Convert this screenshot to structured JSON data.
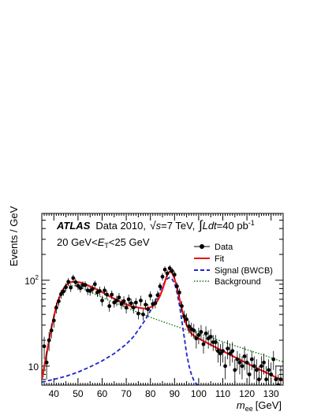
{
  "chart_data": {
    "type": "scatter",
    "ylabel": "Events / GeV",
    "xlabel": "m",
    "xlabel_sub": "ee",
    "xlabel_unit": "[GeV]",
    "xlim": [
      35,
      135
    ],
    "ylim": [
      6,
      600
    ],
    "y_log": true,
    "grid": false,
    "legend_position": "top-right",
    "x_ticks": [
      "40",
      "50",
      "60",
      "70",
      "80",
      "90",
      "100",
      "110",
      "120",
      "130"
    ],
    "y_ticks": [
      "10",
      "10"
    ],
    "y_tick_exponents": [
      "",
      "2"
    ],
    "annotations": {
      "atlas": "ATLAS",
      "data_label": "Data 2010,",
      "sqrt_sym": "√",
      "s_label": "s",
      "energy": "=7 TeV,",
      "integral": "∫",
      "ldt": "Ldt",
      "lumi": "=40 pb",
      "lumi_exp": "-1",
      "range_prefix": "20 GeV<",
      "range_var": "E",
      "range_sub": "T",
      "range_suffix": "<25 GeV"
    },
    "legend": [
      "Data",
      "Fit",
      "Signal (BWCB)",
      "Background"
    ],
    "colors": {
      "data": "#000000",
      "fit": "#ee1111",
      "signal": "#1f24cc",
      "background": "#0e7a0e"
    },
    "series": [
      {
        "name": "Data",
        "style": "points",
        "x": [
          36,
          37,
          38,
          39,
          40,
          41,
          42,
          43,
          44,
          45,
          46,
          47,
          48,
          49,
          50,
          51,
          52,
          53,
          54,
          55,
          56,
          57,
          58,
          59,
          60,
          61,
          62,
          63,
          64,
          65,
          66,
          67,
          68,
          69,
          70,
          71,
          72,
          73,
          74,
          75,
          76,
          77,
          78,
          79,
          80,
          81,
          82,
          83,
          84,
          85,
          86,
          87,
          88,
          89,
          90,
          91,
          92,
          93,
          94,
          95,
          96,
          97,
          98,
          99,
          100,
          101,
          102,
          103,
          104,
          105,
          106,
          107,
          108,
          109,
          110,
          111,
          112,
          113,
          114,
          115,
          116,
          117,
          118,
          119,
          120,
          121,
          122,
          123,
          124,
          125,
          126,
          127,
          128,
          129,
          130,
          131,
          132,
          133,
          134
        ],
        "y": [
          17,
          11,
          20,
          26,
          34,
          48,
          57,
          69,
          74,
          83,
          96,
          82,
          106,
          95,
          86,
          81,
          88,
          88,
          76,
          75,
          79,
          90,
          72,
          75,
          58,
          76,
          68,
          50,
          68,
          55,
          58,
          63,
          53,
          57,
          48,
          60,
          54,
          48,
          55,
          41,
          58,
          40,
          52,
          46,
          66,
          53,
          54,
          67,
          85,
          110,
          133,
          120,
          138,
          128,
          116,
          85,
          72,
          50,
          38,
          35,
          29,
          27,
          26,
          21,
          23,
          25,
          18,
          24,
          21,
          22,
          19,
          19,
          15,
          14,
          15,
          10,
          16,
          14,
          15,
          9,
          12,
          11,
          10,
          13,
          11,
          8,
          12,
          10,
          9,
          7,
          10,
          11,
          7,
          9,
          8,
          12,
          7,
          6,
          7
        ]
      },
      {
        "name": "Fit",
        "style": "line",
        "x": [
          35,
          37,
          39,
          41,
          43,
          45,
          47,
          49,
          51,
          53,
          55,
          57,
          59,
          61,
          63,
          65,
          67,
          69,
          71,
          73,
          75,
          77,
          79,
          81,
          82,
          83,
          84,
          85,
          86,
          87,
          88,
          89,
          90,
          91,
          92,
          93,
          94,
          95,
          96,
          97,
          98,
          100,
          102,
          104,
          106,
          108,
          110,
          112,
          114,
          116,
          118,
          120,
          122,
          124,
          126,
          128,
          130,
          132,
          135
        ],
        "y": [
          7,
          14,
          28,
          50,
          72,
          88,
          95,
          96,
          94,
          90,
          85,
          80,
          75,
          70,
          65,
          61,
          57,
          54,
          51,
          49,
          48,
          47,
          47,
          50,
          53,
          58,
          66,
          78,
          96,
          117,
          126,
          122,
          104,
          82,
          62,
          46,
          36,
          30,
          26,
          24,
          22.5,
          21,
          19.5,
          18.3,
          17.1,
          16,
          15,
          14,
          13.1,
          12.3,
          11.5,
          10.8,
          10.1,
          9.5,
          8.9,
          8.4,
          7.9,
          7.4,
          6.8
        ]
      },
      {
        "name": "Signal (BWCB)",
        "style": "dashed",
        "x": [
          35,
          40,
          45,
          50,
          55,
          60,
          65,
          70,
          73,
          76,
          78,
          80,
          82,
          83,
          84,
          85,
          86,
          87,
          88,
          89,
          90,
          91,
          92,
          93,
          94,
          95,
          96,
          97,
          98,
          99,
          100,
          101
        ],
        "y": [
          6.5,
          7,
          7.6,
          8.5,
          9.8,
          11.5,
          14,
          18,
          22,
          29,
          35,
          44,
          57,
          66,
          76,
          86,
          96,
          104,
          108,
          103,
          92,
          72,
          52,
          34,
          22,
          14,
          10,
          8,
          6.8,
          6.2,
          6,
          6
        ]
      },
      {
        "name": "Background",
        "style": "dotted",
        "x": [
          35,
          37,
          39,
          41,
          43,
          45,
          47,
          49,
          51,
          55,
          60,
          65,
          70,
          75,
          80,
          85,
          90,
          95,
          100,
          105,
          110,
          115,
          120,
          125,
          130,
          135
        ],
        "y": [
          6,
          13,
          28,
          50,
          70,
          82,
          87,
          86,
          82,
          73,
          63,
          55,
          48,
          42,
          37,
          33,
          29.5,
          26.5,
          24,
          21.5,
          19.2,
          17.3,
          15.5,
          14,
          12.5,
          11.2
        ]
      }
    ],
    "errors": [
      5,
      4,
      5,
      5,
      6,
      7,
      7,
      8,
      8,
      9,
      10,
      9,
      10,
      10,
      9,
      9,
      9,
      9,
      9,
      9,
      9,
      9,
      8,
      9,
      8,
      9,
      8,
      7,
      8,
      7,
      8,
      8,
      7,
      8,
      7,
      8,
      7,
      7,
      7,
      6,
      8,
      6,
      7,
      7,
      8,
      7,
      7,
      8,
      9,
      11,
      12,
      11,
      12,
      11,
      11,
      9,
      8,
      7,
      6,
      6,
      5,
      5,
      5,
      5,
      5,
      5,
      4,
      5,
      5,
      5,
      4,
      4,
      4,
      4,
      4,
      3,
      4,
      4,
      4,
      3,
      3,
      3,
      3,
      4,
      3,
      3,
      3,
      3,
      3,
      3,
      3,
      3,
      3,
      3,
      3,
      3,
      3,
      2,
      3
    ]
  }
}
